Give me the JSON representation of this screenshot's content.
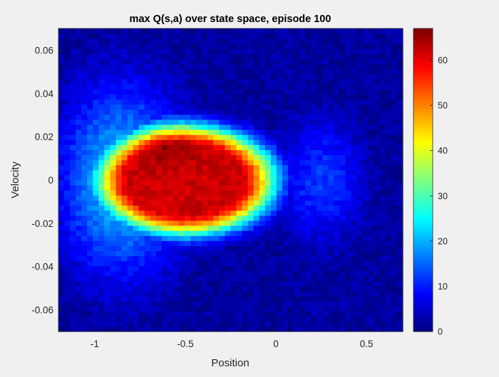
{
  "chart_data": {
    "type": "heatmap",
    "title": "max Q(s,a) over state space, episode 100",
    "xlabel": "Position",
    "ylabel": "Velocity",
    "xlim": [
      -1.2,
      0.7
    ],
    "ylim": [
      -0.07,
      0.07
    ],
    "xticks": [
      -1,
      -0.5,
      0,
      0.5
    ],
    "xtick_labels": [
      "-1",
      "-0.5",
      "0",
      "0.5"
    ],
    "yticks": [
      -0.06,
      -0.04,
      -0.02,
      0,
      0.02,
      0.04,
      0.06
    ],
    "ytick_labels": [
      "-0.06",
      "-0.04",
      "-0.02",
      "0",
      "0.02",
      "0.04",
      "0.06"
    ],
    "colormap": "jet",
    "clim": [
      0,
      67
    ],
    "colorbar_ticks": [
      0,
      10,
      20,
      30,
      40,
      50,
      60
    ],
    "colorbar_tick_labels": [
      "0",
      "10",
      "20",
      "30",
      "40",
      "50",
      "60"
    ],
    "grid": "off",
    "resolution": [
      60,
      60
    ],
    "field": {
      "description_free": true,
      "core": {
        "position": -0.5,
        "velocity": 0.0,
        "peak_value": 66
      },
      "components": [
        {
          "position": -0.5,
          "velocity": 0.0,
          "plateau_radius_position": 0.55,
          "plateau_radius_velocity": 0.028,
          "value": 62
        },
        {
          "position": -0.62,
          "velocity": 0.02,
          "value": 67
        },
        {
          "position": -0.85,
          "velocity": 0.0,
          "value": 22
        },
        {
          "position": 0.25,
          "velocity": 0.0,
          "value": 12
        }
      ],
      "background_value": 2
    }
  }
}
